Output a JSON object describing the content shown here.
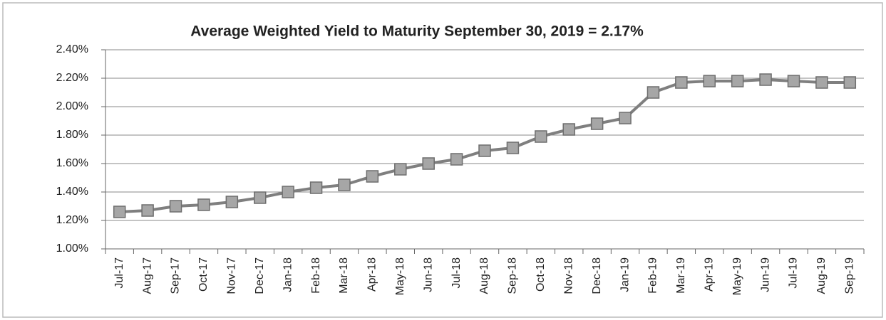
{
  "chart_data": {
    "type": "line",
    "title": "Average Weighted Yield to Maturity September 30, 2019 = 2.17%",
    "categories": [
      "Jul-17",
      "Aug-17",
      "Sep-17",
      "Oct-17",
      "Nov-17",
      "Dec-17",
      "Jan-18",
      "Feb-18",
      "Mar-18",
      "Apr-18",
      "May-18",
      "Jun-18",
      "Jul-18",
      "Aug-18",
      "Sep-18",
      "Oct-18",
      "Nov-18",
      "Dec-18",
      "Jan-19",
      "Feb-19",
      "Mar-19",
      "Apr-19",
      "May-19",
      "Jun-19",
      "Jul-19",
      "Aug-19",
      "Sep-19"
    ],
    "values": [
      1.26,
      1.27,
      1.3,
      1.31,
      1.33,
      1.36,
      1.4,
      1.43,
      1.45,
      1.51,
      1.56,
      1.6,
      1.63,
      1.69,
      1.71,
      1.79,
      1.84,
      1.88,
      1.92,
      2.1,
      2.17,
      2.18,
      2.18,
      2.19,
      2.18,
      2.17,
      2.17
    ],
    "color": "#7f7f7f",
    "marker_color": "#a6a6a6",
    "ylim": [
      1.0,
      2.4
    ],
    "yticks": [
      {
        "value": 1.0,
        "label": "1.00%"
      },
      {
        "value": 1.2,
        "label": "1.20%"
      },
      {
        "value": 1.4,
        "label": "1.40%"
      },
      {
        "value": 1.6,
        "label": "1.60%"
      },
      {
        "value": 1.8,
        "label": "1.80%"
      },
      {
        "value": 2.0,
        "label": "2.00%"
      },
      {
        "value": 2.2,
        "label": "2.20%"
      },
      {
        "value": 2.4,
        "label": "2.40%"
      }
    ],
    "grid": true
  }
}
